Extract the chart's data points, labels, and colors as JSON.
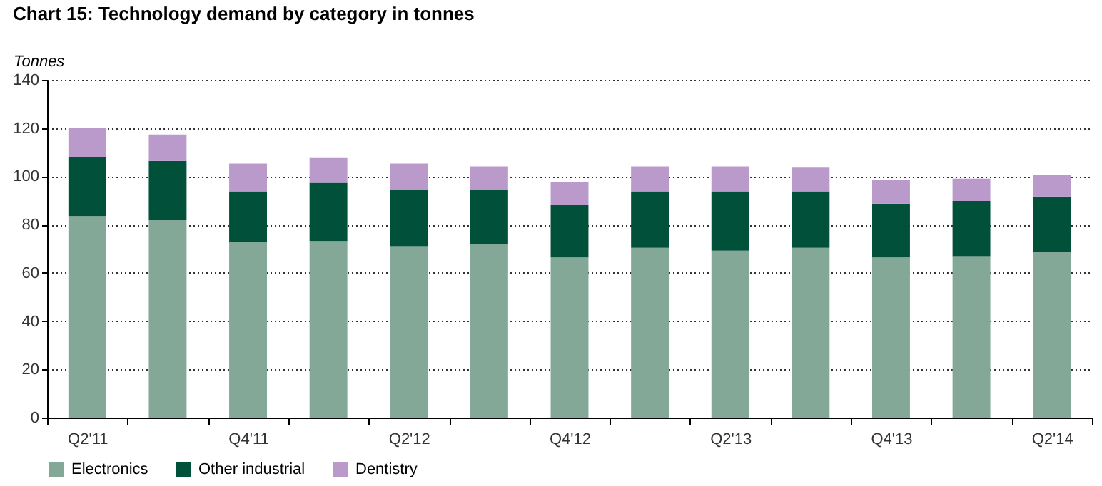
{
  "chart_data": {
    "type": "bar",
    "title": "Chart 15: Technology demand by category in tonnes",
    "ylabel": "Tonnes",
    "categories": [
      "Q2'11",
      null,
      "Q4'11",
      null,
      "Q2'12",
      null,
      "Q4'12",
      null,
      "Q2'13",
      null,
      "Q4'13",
      null,
      "Q2'14"
    ],
    "series": [
      {
        "name": "Electronics",
        "color": "#84a898",
        "values": [
          83.5,
          81.8,
          72.7,
          73.2,
          71.0,
          72.1,
          66.4,
          70.4,
          69.2,
          70.4,
          66.4,
          66.9,
          68.7
        ]
      },
      {
        "name": "Other industrial",
        "color": "#00503a",
        "values": [
          24.6,
          24.6,
          21.1,
          24.1,
          23.4,
          22.3,
          21.7,
          23.4,
          24.6,
          23.4,
          22.3,
          22.9,
          22.9
        ]
      },
      {
        "name": "Dentistry",
        "color": "#b99acb",
        "values": [
          11.9,
          10.9,
          11.5,
          10.3,
          10.9,
          9.7,
          9.7,
          10.3,
          10.3,
          9.8,
          9.7,
          9.2,
          9.1
        ]
      }
    ],
    "stacked": true,
    "ylim": [
      0,
      140
    ],
    "yticks": [
      0,
      20,
      40,
      60,
      80,
      100,
      120,
      140
    ],
    "grid": "y",
    "legend": "bottom left"
  }
}
